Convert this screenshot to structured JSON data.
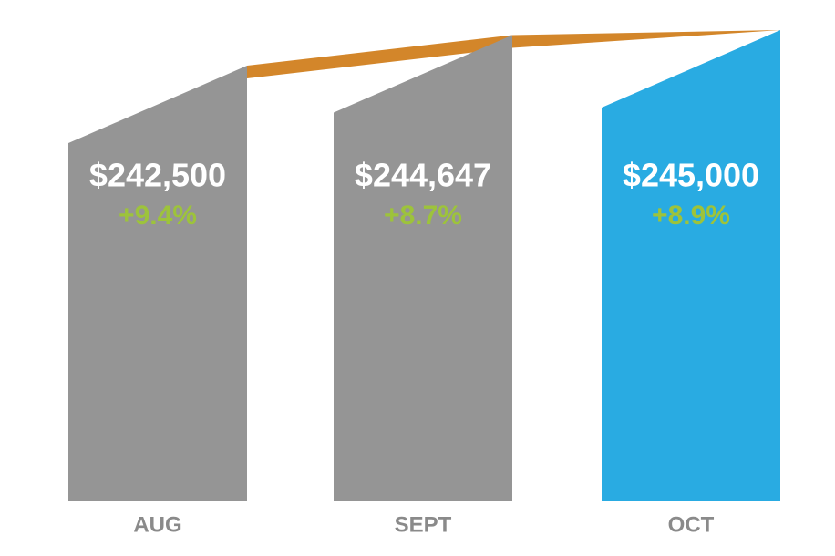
{
  "chart_data": {
    "type": "bar",
    "categories": [
      "AUG",
      "SEPT",
      "OCT"
    ],
    "series": [
      {
        "values": [
          242500,
          244647,
          245000
        ],
        "value_labels": [
          "$242,500",
          "$244,647",
          "$245,000"
        ],
        "colors": [
          "#959595",
          "#959595",
          "#29abe2"
        ]
      },
      {
        "values": [
          9.4,
          8.7,
          8.9
        ],
        "value_labels": [
          "+9.4%",
          "+8.7%",
          "+8.9%"
        ],
        "color": "#9dc33b"
      }
    ],
    "ribbon_color": "#d3862a"
  }
}
